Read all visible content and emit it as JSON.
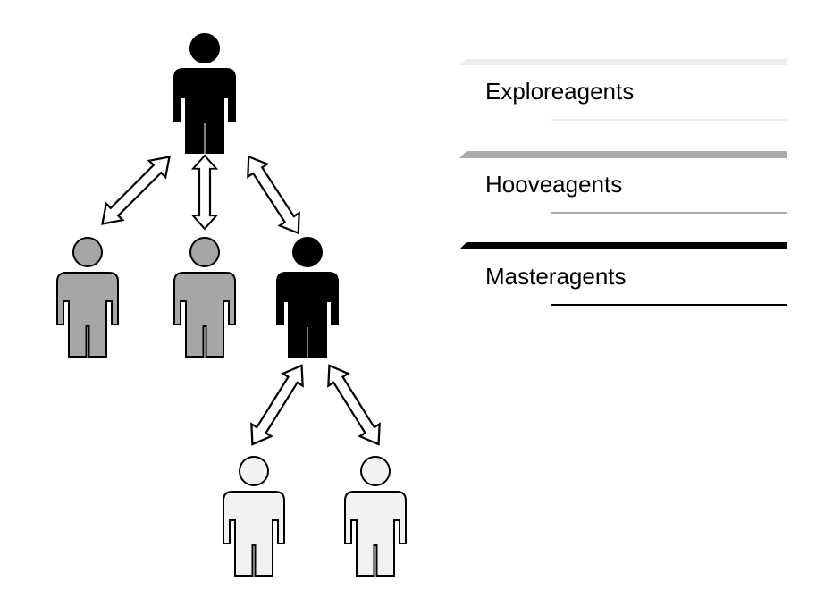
{
  "legend": {
    "items": [
      {
        "label": "Exploreagents",
        "color": "#ededed",
        "role": "explore"
      },
      {
        "label": "Hooveagents",
        "color": "#aaaaaa",
        "role": "hoove"
      },
      {
        "label": "Masteragents",
        "color": "#000000",
        "role": "master"
      }
    ]
  },
  "agents": {
    "master_fill": "#000000",
    "hoove_fill": "#a6a6a6",
    "explore_fill": "#f2f2f2",
    "outline": "#000000"
  },
  "arrows": {
    "fill": "#ffffff",
    "stroke": "#000000"
  }
}
